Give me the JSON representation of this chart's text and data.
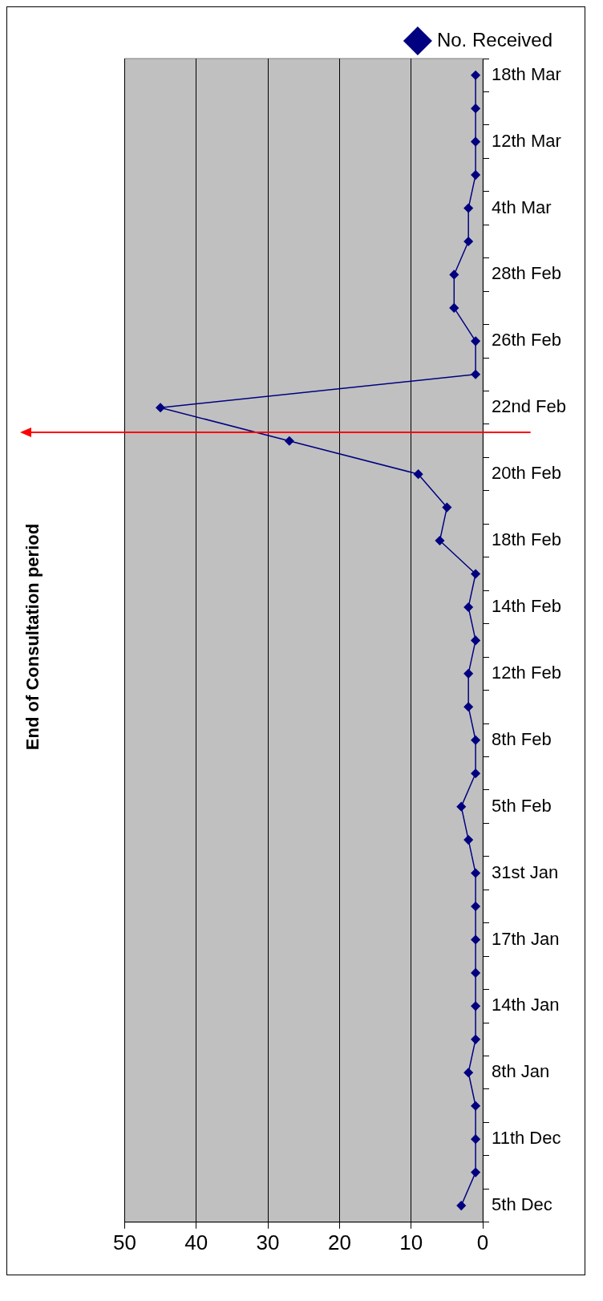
{
  "chart_data": {
    "type": "line",
    "orientation": "horizontal",
    "title": "End of Consultation period",
    "categories": [
      "18th Mar",
      null,
      "12th Mar",
      null,
      "4th Mar",
      null,
      "28th Feb",
      null,
      "26th Feb",
      null,
      "22nd Feb",
      null,
      "20th Feb",
      null,
      "18th Feb",
      null,
      "14th Feb",
      null,
      "12th Feb",
      null,
      "8th Feb",
      null,
      "5th Feb",
      null,
      "31st Jan",
      null,
      "17th Jan",
      null,
      "14th Jan",
      null,
      "8th Jan",
      null,
      "11th Dec",
      null,
      "5th Dec"
    ],
    "series": [
      {
        "name": "No. Received",
        "color": "#000080",
        "values": [
          1,
          1,
          1,
          1,
          2,
          2,
          4,
          4,
          1,
          1,
          45,
          27,
          9,
          5,
          6,
          1,
          2,
          1,
          2,
          2,
          1,
          1,
          3,
          2,
          1,
          1,
          1,
          1,
          1,
          1,
          2,
          1,
          1,
          1,
          3
        ]
      }
    ],
    "xlim": [
      50,
      0
    ],
    "xticks": [
      50,
      40,
      30,
      20,
      10,
      0
    ],
    "grid": "x",
    "legend": "top right",
    "marker": "diamond",
    "line_style": "solid"
  }
}
